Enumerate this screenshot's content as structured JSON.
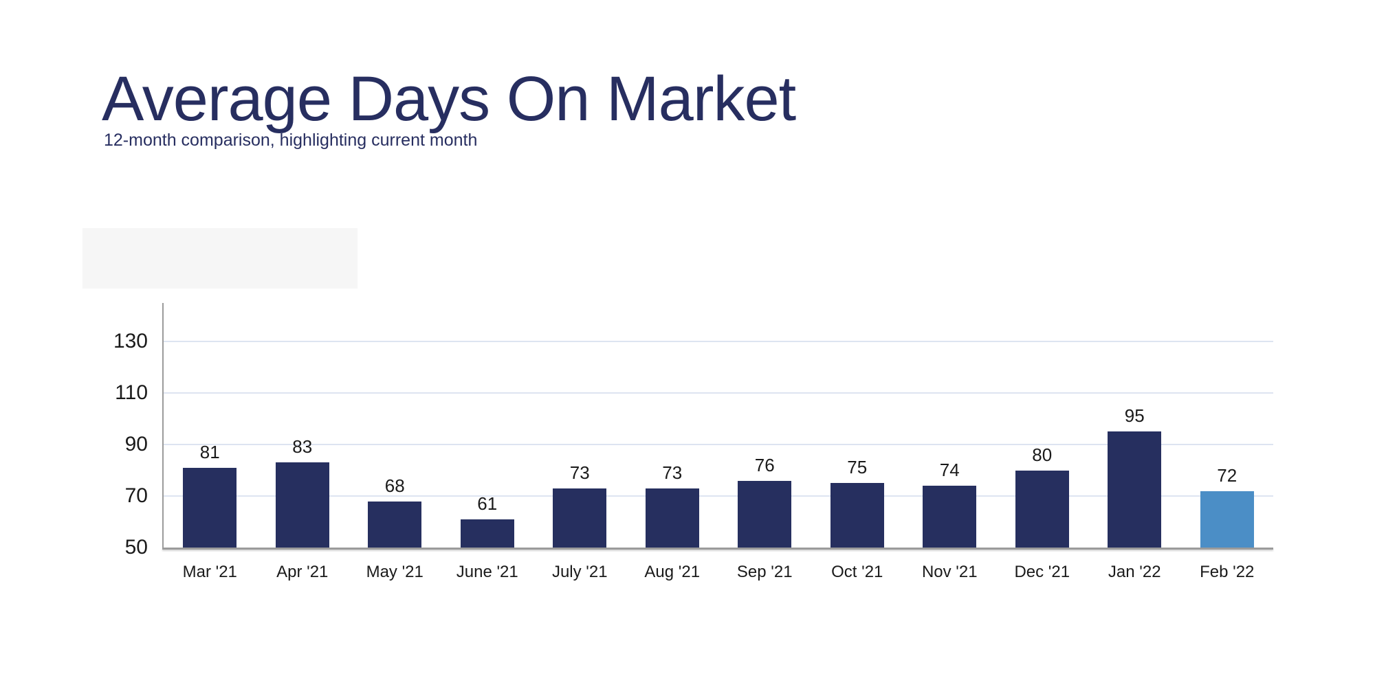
{
  "header": {
    "title": "Average Days On Market",
    "subtitle": "12-month comparison, highlighting current month"
  },
  "colors": {
    "title_navy": "#272e60",
    "bar_navy": "#262f5f",
    "bar_highlight_blue": "#4b8ec6",
    "gridline": "#dde4f1",
    "axis_line": "#9b9b9b",
    "label_text": "#1a1a1a"
  },
  "chart_data": {
    "type": "bar",
    "title": "Average Days On Market",
    "subtitle": "12-month comparison, highlighting current month",
    "categories": [
      "Mar '21",
      "Apr '21",
      "May '21",
      "June '21",
      "July '21",
      "Aug '21",
      "Sep '21",
      "Oct '21",
      "Nov '21",
      "Dec '21",
      "Jan '22",
      "Feb '22"
    ],
    "values": [
      81,
      83,
      68,
      61,
      73,
      73,
      76,
      75,
      74,
      80,
      95,
      72
    ],
    "data_labels": [
      81,
      83,
      68,
      61,
      73,
      73,
      76,
      75,
      74,
      80,
      95,
      72
    ],
    "highlighted_index": 11,
    "highlighted_category": "Feb '22",
    "xlabel": "",
    "ylabel": "",
    "y_ticks": [
      130,
      110,
      90,
      70,
      50
    ],
    "ylim": [
      50,
      145
    ],
    "baseline_value": 50,
    "grid": true,
    "legend": false
  }
}
